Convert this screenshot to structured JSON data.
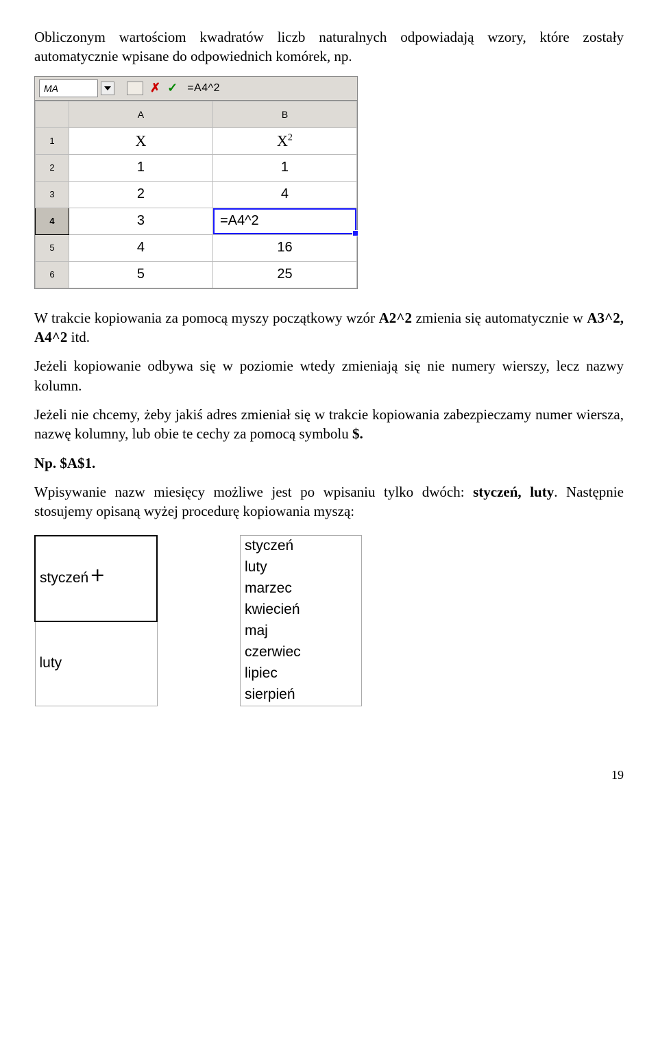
{
  "para1": "Obliczonym wartościom kwadratów liczb naturalnych odpowiadają wzory, które zostały automatycznie wpisane do odpowiednich komórek, np.",
  "ss1": {
    "nameBox": "MA",
    "formula": "=A4^2",
    "cols": [
      "A",
      "B"
    ],
    "rows": [
      "1",
      "2",
      "3",
      "4",
      "5",
      "6"
    ],
    "headerA": "X",
    "headerB_base": "X",
    "headerB_exp": "2",
    "cells": {
      "A2": "1",
      "B2": "1",
      "A3": "2",
      "B3": "4",
      "A4": "3",
      "B4": "=A4^2",
      "A5": "4",
      "B5": "16",
      "A6": "5",
      "B6": "25"
    },
    "activeRow": "4"
  },
  "para2a": "W trakcie kopiowania za pomocą myszy początkowy wzór ",
  "para2b": "A2^2",
  "para2c": " zmienia się automatycznie w ",
  "para2d": "A3^2, A4^2",
  "para2e": " itd.",
  "para3": "Jeżeli kopiowanie odbywa się w poziomie wtedy zmieniają się nie numery wierszy, lecz nazwy kolumn.",
  "para4a": "Jeżeli  nie chcemy, żeby jakiś adres zmieniał się w trakcie kopiowania zabezpieczamy numer wiersza, nazwę kolumny, lub obie te cechy za pomocą symbolu ",
  "para4b": "$.",
  "para5a": "Np.  ",
  "para5b": "$A$1.",
  "para6a": "Wpisywanie nazw miesięcy możliwe jest po wpisaniu tylko dwóch: ",
  "para6b": "styczeń, luty",
  "para6c": ". Następnie stosujemy opisaną wyżej procedurę kopiowania myszą:",
  "monthsLeft": [
    "styczeń",
    "luty"
  ],
  "monthsRight": [
    "styczeń",
    "luty",
    "marzec",
    "kwiecień",
    "maj",
    "czerwiec",
    "lipiec",
    "sierpień"
  ],
  "pageNumber": "19"
}
